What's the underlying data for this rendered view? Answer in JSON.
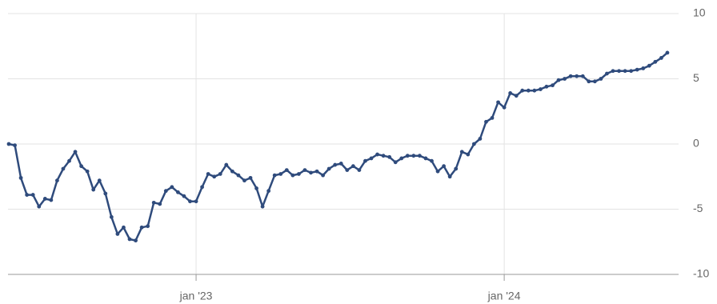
{
  "chart_data": {
    "type": "line",
    "categories": [
      null,
      null,
      null,
      null,
      null,
      null,
      null,
      null,
      null,
      null,
      null,
      null,
      null,
      null,
      null,
      null,
      null,
      null,
      null,
      null,
      null,
      null,
      null,
      null,
      null,
      null,
      null,
      null,
      null,
      null,
      null,
      "jan '23",
      null,
      null,
      null,
      null,
      null,
      null,
      null,
      null,
      null,
      null,
      null,
      null,
      null,
      null,
      null,
      null,
      null,
      null,
      null,
      null,
      null,
      null,
      null,
      null,
      null,
      null,
      null,
      null,
      null,
      null,
      null,
      null,
      null,
      null,
      null,
      null,
      null,
      null,
      null,
      null,
      null,
      null,
      null,
      null,
      null,
      null,
      null,
      null,
      null,
      null,
      "jan '24",
      null,
      null,
      null,
      null,
      null,
      null,
      null,
      null,
      null,
      null,
      null,
      null,
      null,
      null,
      null,
      null,
      null,
      null,
      null,
      null,
      null,
      null,
      null,
      null,
      null,
      null,
      null
    ],
    "values": [
      0,
      -0.1,
      -2.6,
      -3.9,
      -3.9,
      -4.8,
      -4.2,
      -4.3,
      -2.8,
      -1.9,
      -1.3,
      -0.6,
      -1.7,
      -2.1,
      -3.5,
      -2.8,
      -3.8,
      -5.6,
      -6.9,
      -6.4,
      -7.3,
      -7.4,
      -6.4,
      -6.3,
      -4.5,
      -4.6,
      -3.6,
      -3.3,
      -3.7,
      -4.0,
      -4.4,
      -4.4,
      -3.3,
      -2.3,
      -2.5,
      -2.3,
      -1.6,
      -2.1,
      -2.4,
      -2.8,
      -2.6,
      -3.4,
      -4.8,
      -3.6,
      -2.4,
      -2.3,
      -2.0,
      -2.4,
      -2.3,
      -2.0,
      -2.2,
      -2.1,
      -2.4,
      -1.9,
      -1.6,
      -1.5,
      -2.0,
      -1.7,
      -2.0,
      -1.3,
      -1.1,
      -0.8,
      -0.9,
      -1.0,
      -1.4,
      -1.1,
      -0.9,
      -0.9,
      -0.9,
      -1.1,
      -1.3,
      -2.1,
      -1.7,
      -2.5,
      -1.9,
      -0.6,
      -0.8,
      0,
      0.4,
      1.7,
      2.0,
      3.2,
      2.8,
      3.9,
      3.7,
      4.1,
      4.1,
      4.1,
      4.2,
      4.4,
      4.5,
      4.9,
      5.0,
      5.2,
      5.2,
      5.2,
      4.8,
      4.8,
      5.0,
      5.4,
      5.6,
      5.6,
      5.6,
      5.6,
      5.7,
      5.8,
      6.0,
      6.3,
      6.6,
      7.0
    ],
    "color": "#2f4b7c",
    "ylim": [
      -10,
      10
    ],
    "yticks": [
      -10,
      -5,
      0,
      5,
      10
    ],
    "grid": true
  }
}
